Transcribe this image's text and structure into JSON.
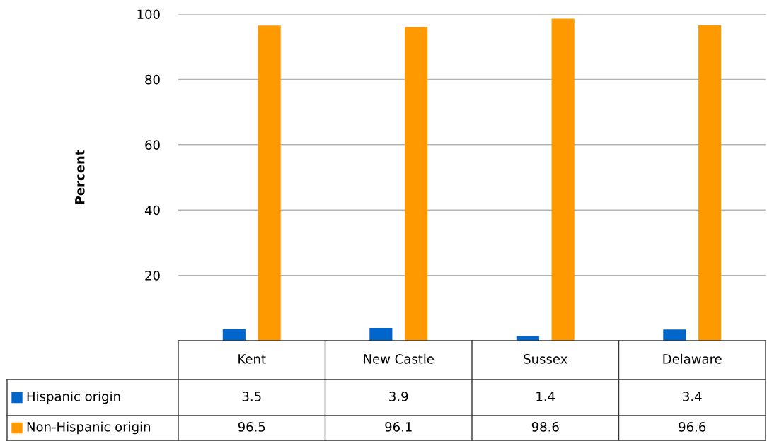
{
  "chart_data": {
    "type": "bar",
    "ylabel": "Percent",
    "categories": [
      "Kent",
      "New Castle",
      "Sussex",
      "Delaware"
    ],
    "series": [
      {
        "name": "Hispanic origin",
        "color": "#0066cc",
        "values": [
          3.5,
          3.9,
          1.4,
          3.4
        ]
      },
      {
        "name": "Non-Hispanic origin",
        "color": "#ff9900",
        "values": [
          96.5,
          96.1,
          98.6,
          96.6
        ]
      }
    ],
    "ylim": [
      0,
      100
    ],
    "yticks": [
      20,
      40,
      60,
      80,
      100
    ],
    "grid": "y",
    "data_labels": true,
    "legend": "bottom left"
  }
}
